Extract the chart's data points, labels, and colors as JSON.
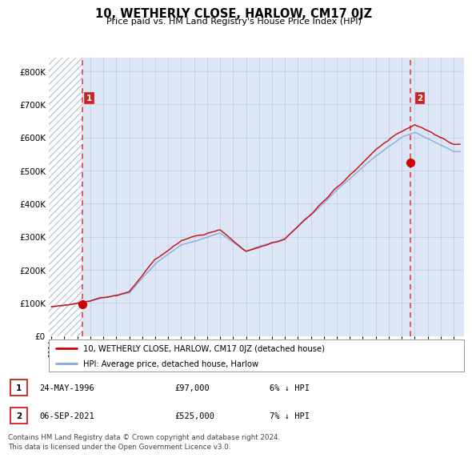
{
  "title": "10, WETHERLY CLOSE, HARLOW, CM17 0JZ",
  "subtitle": "Price paid vs. HM Land Registry's House Price Index (HPI)",
  "background_color": "#ffffff",
  "plot_bg_color": "#dce6f5",
  "grid_color": "#b8c8e0",
  "sale1_date_num": 1996.39,
  "sale1_price": 97000,
  "sale2_date_num": 2021.68,
  "sale2_price": 525000,
  "ylim": [
    0,
    840000
  ],
  "xlim_start": 1993.8,
  "xlim_end": 2025.8,
  "legend_line1": "10, WETHERLY CLOSE, HARLOW, CM17 0JZ (detached house)",
  "legend_line2": "HPI: Average price, detached house, Harlow",
  "footnote": "Contains HM Land Registry data © Crown copyright and database right 2024.\nThis data is licensed under the Open Government Licence v3.0.",
  "sold_line_color": "#cc0000",
  "hpi_line_color": "#88aadd",
  "sold_marker_color": "#cc0000",
  "dashed_line_color": "#dd3333",
  "label_box_color": "#cc2222",
  "hatch_bg": "#ffffff",
  "hatch_line": "#c0c8d8"
}
